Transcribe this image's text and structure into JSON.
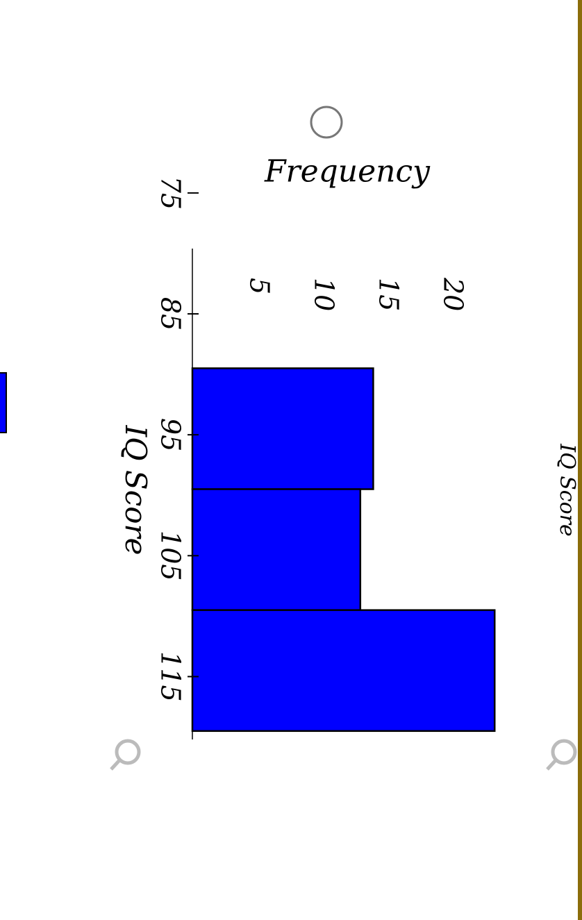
{
  "chart_data": {
    "type": "histogram",
    "title": "IQ Score",
    "x_label": "IQ Score",
    "y_label": "Frequency",
    "bins": [
      89.5,
      99.5,
      109.5,
      119.5
    ],
    "values": [
      14,
      13,
      23.4
    ],
    "color": "#0000ff",
    "xlim": [
      79.6,
      120.2
    ],
    "xticks": [
      75,
      85,
      95,
      105,
      115
    ],
    "ylim": [
      0,
      25
    ],
    "yticks": [
      5,
      10,
      15,
      20
    ]
  }
}
